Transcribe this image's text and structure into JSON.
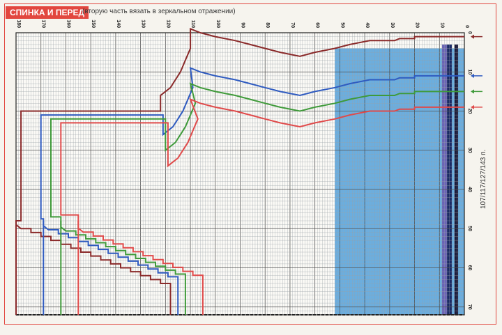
{
  "header": {
    "title": "СПИНКА И ПЕРЕД",
    "subtitle": "(вторую часть вязать в зеркальном отражении)"
  },
  "side_label": "107/117/127/143 п.",
  "grid": {
    "col_ticks": [
      "180",
      "170",
      "160",
      "150",
      "140",
      "130",
      "120",
      "110",
      "100",
      "90",
      "80",
      "70",
      "60",
      "50",
      "40",
      "30",
      "20",
      "10",
      "0"
    ],
    "row_ticks": [
      "0",
      "10",
      "20",
      "30",
      "40",
      "50",
      "60",
      "70"
    ],
    "rib_colors": [
      "#4a78c0",
      "#6a64b6",
      "#1a2a66",
      "#1a1a3a"
    ]
  },
  "sizes": [
    {
      "name": "size-1",
      "color": "#8a2a2a"
    },
    {
      "name": "size-2",
      "color": "#2f5bc0"
    },
    {
      "name": "size-3",
      "color": "#3f9a3a"
    },
    {
      "name": "size-4",
      "color": "#e04a4a"
    }
  ],
  "colors": {
    "accent": "#e2473f",
    "rib_fill": "#6aaee0",
    "grid_line": "#555555",
    "grid_minor": "#9aa0a6"
  }
}
